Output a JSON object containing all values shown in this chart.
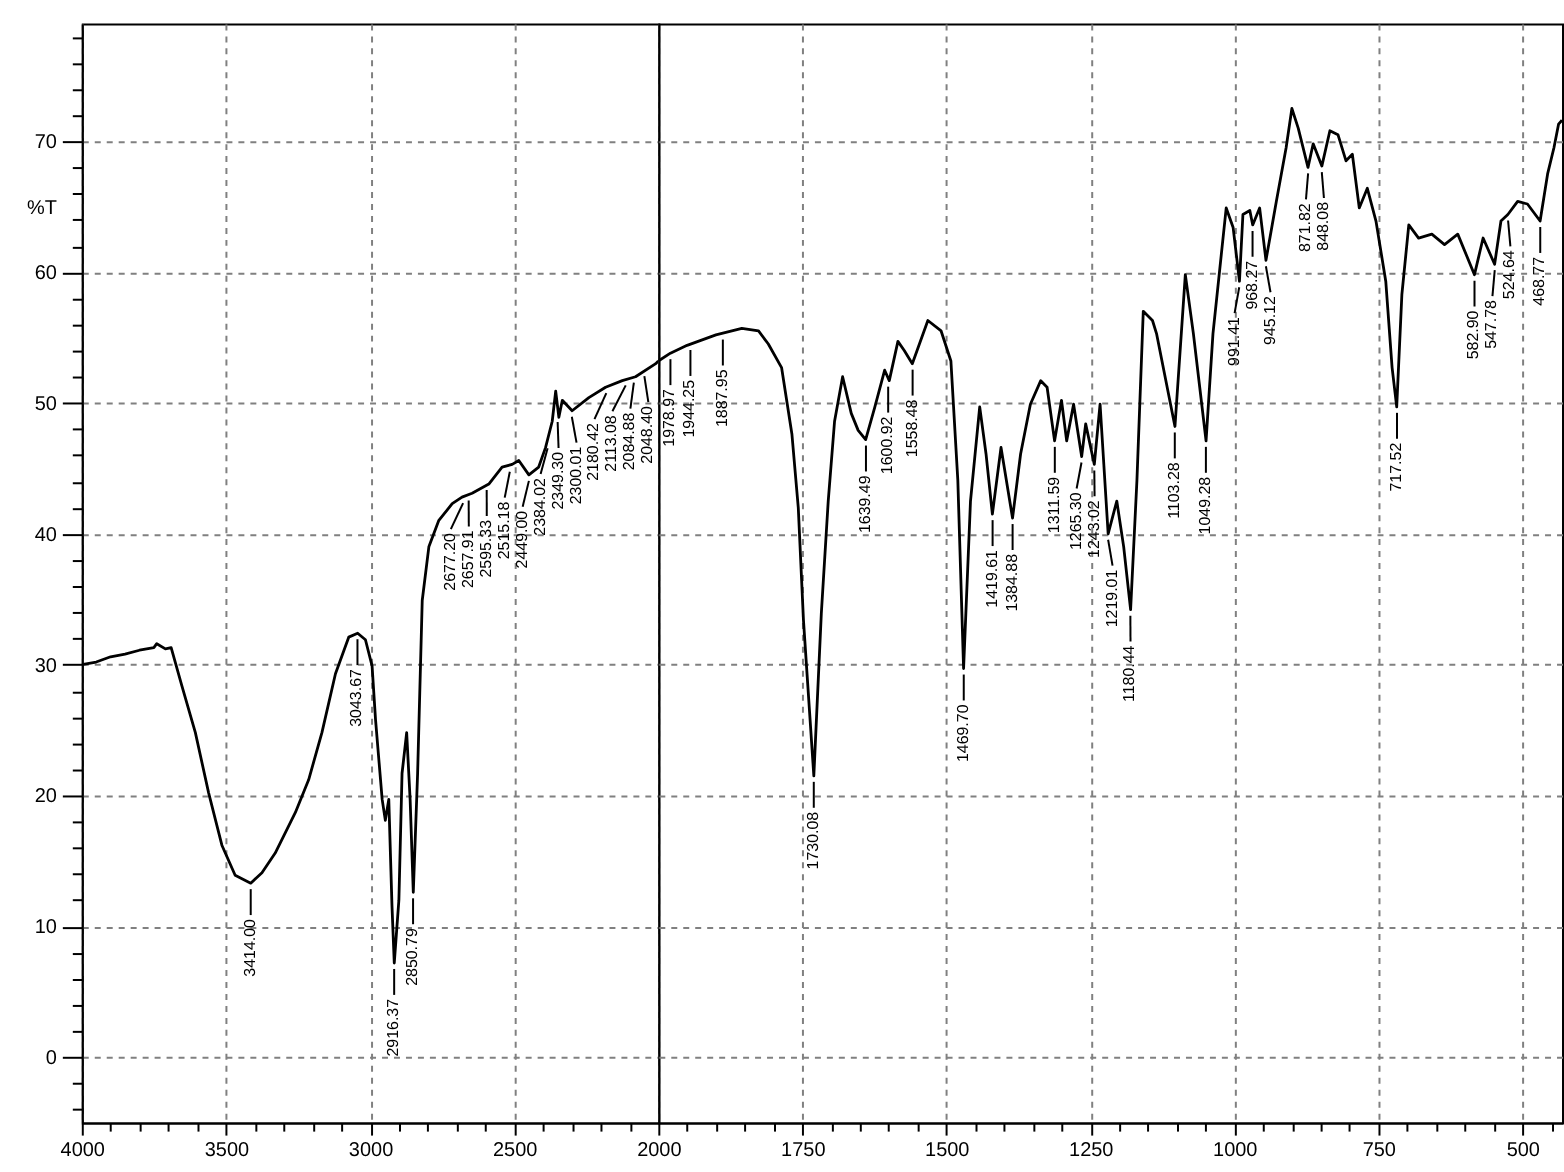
{
  "chart_data": [
    {
      "type": "line",
      "ylabel": "%T",
      "color": "#000000",
      "xlim": [
        4000,
        2000
      ],
      "ylim": [
        -5,
        79
      ],
      "xticks": [
        4000,
        {
          "value": 3900,
          "label": null
        },
        {
          "value": 3800,
          "label": null
        },
        {
          "value": 3700,
          "label": null
        },
        {
          "value": 3600,
          "label": null
        },
        3500,
        {
          "value": 3400,
          "label": null
        },
        {
          "value": 3300,
          "label": null
        },
        {
          "value": 3200,
          "label": null
        },
        {
          "value": 3100,
          "label": null
        },
        3000,
        {
          "value": 2900,
          "label": null
        },
        {
          "value": 2800,
          "label": null
        },
        {
          "value": 2700,
          "label": null
        },
        {
          "value": 2600,
          "label": null
        },
        2500,
        {
          "value": 2400,
          "label": null
        },
        {
          "value": 2300,
          "label": null
        },
        {
          "value": 2200,
          "label": null
        },
        {
          "value": 2100,
          "label": null
        },
        2000
      ],
      "yticks": [
        {
          "value": -4,
          "label": null
        },
        {
          "value": -2,
          "label": null
        },
        0,
        {
          "value": 2,
          "label": null
        },
        {
          "value": 4,
          "label": null
        },
        {
          "value": 6,
          "label": null
        },
        {
          "value": 8,
          "label": null
        },
        10,
        {
          "value": 12,
          "label": null
        },
        {
          "value": 14,
          "label": null
        },
        {
          "value": 16,
          "label": null
        },
        {
          "value": 18,
          "label": null
        },
        20,
        {
          "value": 22,
          "label": null
        },
        {
          "value": 24,
          "label": null
        },
        {
          "value": 26,
          "label": null
        },
        {
          "value": 28,
          "label": null
        },
        30,
        {
          "value": 32,
          "label": null
        },
        {
          "value": 34,
          "label": null
        },
        {
          "value": 36,
          "label": null
        },
        {
          "value": 38,
          "label": null
        },
        40,
        {
          "value": 42,
          "label": null
        },
        {
          "value": 44,
          "label": null
        },
        {
          "value": 46,
          "label": null
        },
        {
          "value": 48,
          "label": null
        },
        50,
        {
          "value": 52,
          "label": null
        },
        {
          "value": 54,
          "label": null
        },
        {
          "value": 56,
          "label": null
        },
        {
          "value": 58,
          "label": null
        },
        60,
        {
          "value": 62,
          "label": null
        },
        {
          "value": 64,
          "label": null
        },
        {
          "value": 66,
          "label": null
        },
        {
          "value": 68,
          "label": null
        },
        70,
        {
          "value": 72,
          "label": null
        },
        {
          "value": 74,
          "label": null
        },
        {
          "value": 76,
          "label": null
        },
        {
          "value": 78,
          "label": null
        }
      ],
      "grid": true,
      "x": [
        4000,
        3950,
        3900,
        3850,
        3800,
        3750,
        3740,
        3710,
        3690,
        3653,
        3606,
        3560,
        3514,
        3468,
        3414,
        3375,
        3329,
        3259,
        3213,
        3167,
        3120,
        3074,
        3043,
        3016,
        2993,
        2981,
        2958,
        2947,
        2935,
        2924,
        2916,
        2900,
        2889,
        2873,
        2861,
        2850,
        2835,
        2819,
        2796,
        2762,
        2715,
        2681,
        2646,
        2588,
        2542,
        2507,
        2484,
        2449,
        2415,
        2391,
        2368,
        2356,
        2345,
        2333,
        2299,
        2241,
        2183,
        2125,
        2079,
        2009,
        2000
      ],
      "values": [
        30.0,
        30.2,
        30.6,
        30.8,
        31.1,
        31.3,
        31.6,
        31.2,
        31.3,
        28.4,
        24.8,
        20.2,
        16.2,
        13.9,
        13.3,
        14.1,
        15.6,
        18.7,
        21.2,
        24.8,
        29.3,
        32.1,
        32.4,
        31.9,
        29.9,
        25.8,
        19.7,
        18.1,
        19.7,
        11.6,
        7.2,
        12.0,
        21.7,
        24.8,
        19.7,
        12.6,
        21.7,
        34.9,
        39.0,
        41.0,
        42.3,
        42.8,
        43.1,
        43.8,
        45.1,
        45.3,
        45.6,
        44.5,
        45.1,
        46.6,
        48.6,
        50.9,
        48.9,
        50.2,
        49.4,
        50.4,
        51.2,
        51.7,
        52.0,
        53.0,
        53.2
      ],
      "annotations": [
        {
          "text": "3414.00",
          "x": 3414.0,
          "y": 13.3
        },
        {
          "text": "3043.67",
          "x": 3043.67,
          "y": 32.4
        },
        {
          "text": "2916.37",
          "x": 2916.37,
          "y": 7.2
        },
        {
          "text": "2850.79",
          "x": 2850.79,
          "y": 12.6
        },
        {
          "text": "2677.20",
          "x": 2677.2,
          "y": 42.8
        },
        {
          "text": "2657.91",
          "x": 2657.91,
          "y": 43.0
        },
        {
          "text": "2595.33",
          "x": 2595.33,
          "y": 43.8
        },
        {
          "text": "2515.18",
          "x": 2515.18,
          "y": 45.2
        },
        {
          "text": "2449.00",
          "x": 2449.0,
          "y": 44.5
        },
        {
          "text": "2384.02",
          "x": 2384.02,
          "y": 47.0
        },
        {
          "text": "2349.30",
          "x": 2349.3,
          "y": 49.0
        },
        {
          "text": "2300.01",
          "x": 2300.01,
          "y": 49.4
        },
        {
          "text": "2180.42",
          "x": 2180.42,
          "y": 51.2
        },
        {
          "text": "2113.08",
          "x": 2113.08,
          "y": 51.8
        },
        {
          "text": "2084.88",
          "x": 2084.88,
          "y": 52.0
        },
        {
          "text": "2048.40",
          "x": 2048.4,
          "y": 52.5
        }
      ]
    },
    {
      "type": "line",
      "color": "#000000",
      "xlim": [
        2000,
        431
      ],
      "ylim": [
        -5,
        79
      ],
      "xticks": [
        {
          "value": 1950,
          "label": null
        },
        {
          "value": 1900,
          "label": null
        },
        {
          "value": 1850,
          "label": null
        },
        {
          "value": 1800,
          "label": null
        },
        1750,
        {
          "value": 1700,
          "label": null
        },
        {
          "value": 1650,
          "label": null
        },
        {
          "value": 1600,
          "label": null
        },
        {
          "value": 1550,
          "label": null
        },
        1500,
        {
          "value": 1450,
          "label": null
        },
        {
          "value": 1400,
          "label": null
        },
        {
          "value": 1350,
          "label": null
        },
        {
          "value": 1300,
          "label": null
        },
        1250,
        {
          "value": 1200,
          "label": null
        },
        {
          "value": 1150,
          "label": null
        },
        {
          "value": 1100,
          "label": null
        },
        {
          "value": 1050,
          "label": null
        },
        1000,
        {
          "value": 950,
          "label": null
        },
        {
          "value": 900,
          "label": null
        },
        {
          "value": 850,
          "label": null
        },
        {
          "value": 800,
          "label": null
        },
        750,
        {
          "value": 700,
          "label": null
        },
        {
          "value": 650,
          "label": null
        },
        {
          "value": 600,
          "label": null
        },
        {
          "value": 550,
          "label": null
        },
        500,
        {
          "value": 450,
          "label": null
        }
      ],
      "yticks": [
        0,
        10,
        20,
        30,
        40,
        50,
        60,
        70
      ],
      "tick_labels": "x",
      "grid": true,
      "x": [
        2000,
        1979,
        1950,
        1900,
        1855,
        1826,
        1809,
        1786,
        1768,
        1757,
        1748,
        1730,
        1717,
        1705,
        1694,
        1680,
        1665,
        1653,
        1640,
        1624,
        1607,
        1599,
        1584,
        1573,
        1559,
        1532,
        1509,
        1492,
        1480,
        1470,
        1458,
        1442,
        1431,
        1420,
        1405,
        1385,
        1371,
        1354,
        1336,
        1325,
        1312,
        1300,
        1291,
        1279,
        1265,
        1258,
        1243,
        1233,
        1219,
        1204,
        1192,
        1180,
        1169,
        1158,
        1142,
        1135,
        1103,
        1085,
        1071,
        1060,
        1049,
        1037,
        1014,
        1002,
        991,
        985,
        973,
        968,
        956,
        945,
        927,
        910,
        900,
        889,
        872,
        863,
        848,
        834,
        820,
        806,
        795,
        783,
        769,
        754,
        737,
        726,
        718,
        709,
        697,
        680,
        657,
        635,
        612,
        583,
        568,
        548,
        537,
        525,
        508,
        491,
        469,
        456,
        445,
        437,
        431
      ],
      "values": [
        53.2,
        53.8,
        54.4,
        55.2,
        55.7,
        55.5,
        54.5,
        52.7,
        47.6,
        42.0,
        33.4,
        21.5,
        33.9,
        42.5,
        48.6,
        52.0,
        49.2,
        47.9,
        47.2,
        49.7,
        52.5,
        51.7,
        54.7,
        54.0,
        53.0,
        56.3,
        55.5,
        53.2,
        44.1,
        29.7,
        42.5,
        49.7,
        46.1,
        41.5,
        46.6,
        41.2,
        46.1,
        49.9,
        51.7,
        51.2,
        47.1,
        50.2,
        47.1,
        49.9,
        45.9,
        48.4,
        45.3,
        49.9,
        40.0,
        42.5,
        39.0,
        34.2,
        44.1,
        57.0,
        56.3,
        55.3,
        48.2,
        59.8,
        55.3,
        51.2,
        47.1,
        55.3,
        64.9,
        63.4,
        59.3,
        64.4,
        64.7,
        63.6,
        64.9,
        60.9,
        65.4,
        69.5,
        72.5,
        71.0,
        68.0,
        69.8,
        68.1,
        70.8,
        70.5,
        68.5,
        69.0,
        64.9,
        66.4,
        63.9,
        59.3,
        52.7,
        49.7,
        58.3,
        63.6,
        62.6,
        62.9,
        62.1,
        62.9,
        59.8,
        62.6,
        60.6,
        63.9,
        64.4,
        65.4,
        65.2,
        63.9,
        67.5,
        69.5,
        71.3,
        71.6
      ],
      "annotations": [
        {
          "text": "1978.97",
          "x": 1978.97,
          "y": 53.8
        },
        {
          "text": "1944.25",
          "x": 1944.25,
          "y": 54.5
        },
        {
          "text": "1887.95",
          "x": 1887.95,
          "y": 55.3
        },
        {
          "text": "1730.08",
          "x": 1730.08,
          "y": 21.5
        },
        {
          "text": "1639.49",
          "x": 1639.49,
          "y": 47.2
        },
        {
          "text": "1600.92",
          "x": 1600.92,
          "y": 51.7
        },
        {
          "text": "1558.48",
          "x": 1558.48,
          "y": 53.0
        },
        {
          "text": "1469.70",
          "x": 1469.7,
          "y": 29.7
        },
        {
          "text": "1419.61",
          "x": 1419.61,
          "y": 41.5
        },
        {
          "text": "1384.88",
          "x": 1384.88,
          "y": 41.2
        },
        {
          "text": "1311.59",
          "x": 1311.59,
          "y": 47.1
        },
        {
          "text": "1265.30",
          "x": 1265.3,
          "y": 45.9
        },
        {
          "text": "1243.02",
          "x": 1243.02,
          "y": 45.3
        },
        {
          "text": "1219.01",
          "x": 1219.01,
          "y": 40.0
        },
        {
          "text": "1180.44",
          "x": 1180.44,
          "y": 34.2
        },
        {
          "text": "1103.28",
          "x": 1103.28,
          "y": 48.2
        },
        {
          "text": "1049.28",
          "x": 1049.28,
          "y": 47.1
        },
        {
          "text": "991.41",
          "x": 991.41,
          "y": 59.3
        },
        {
          "text": "968.27",
          "x": 968.27,
          "y": 63.6
        },
        {
          "text": "945.12",
          "x": 945.12,
          "y": 60.9
        },
        {
          "text": "871.82",
          "x": 871.82,
          "y": 68.0
        },
        {
          "text": "848.08",
          "x": 848.08,
          "y": 68.1
        },
        {
          "text": "717.52",
          "x": 717.52,
          "y": 49.7
        },
        {
          "text": "582.90",
          "x": 582.9,
          "y": 59.8
        },
        {
          "text": "547.78",
          "x": 547.78,
          "y": 60.6
        },
        {
          "text": "524.64",
          "x": 524.64,
          "y": 64.4
        },
        {
          "text": "468.77",
          "x": 468.77,
          "y": 63.9
        }
      ]
    }
  ]
}
